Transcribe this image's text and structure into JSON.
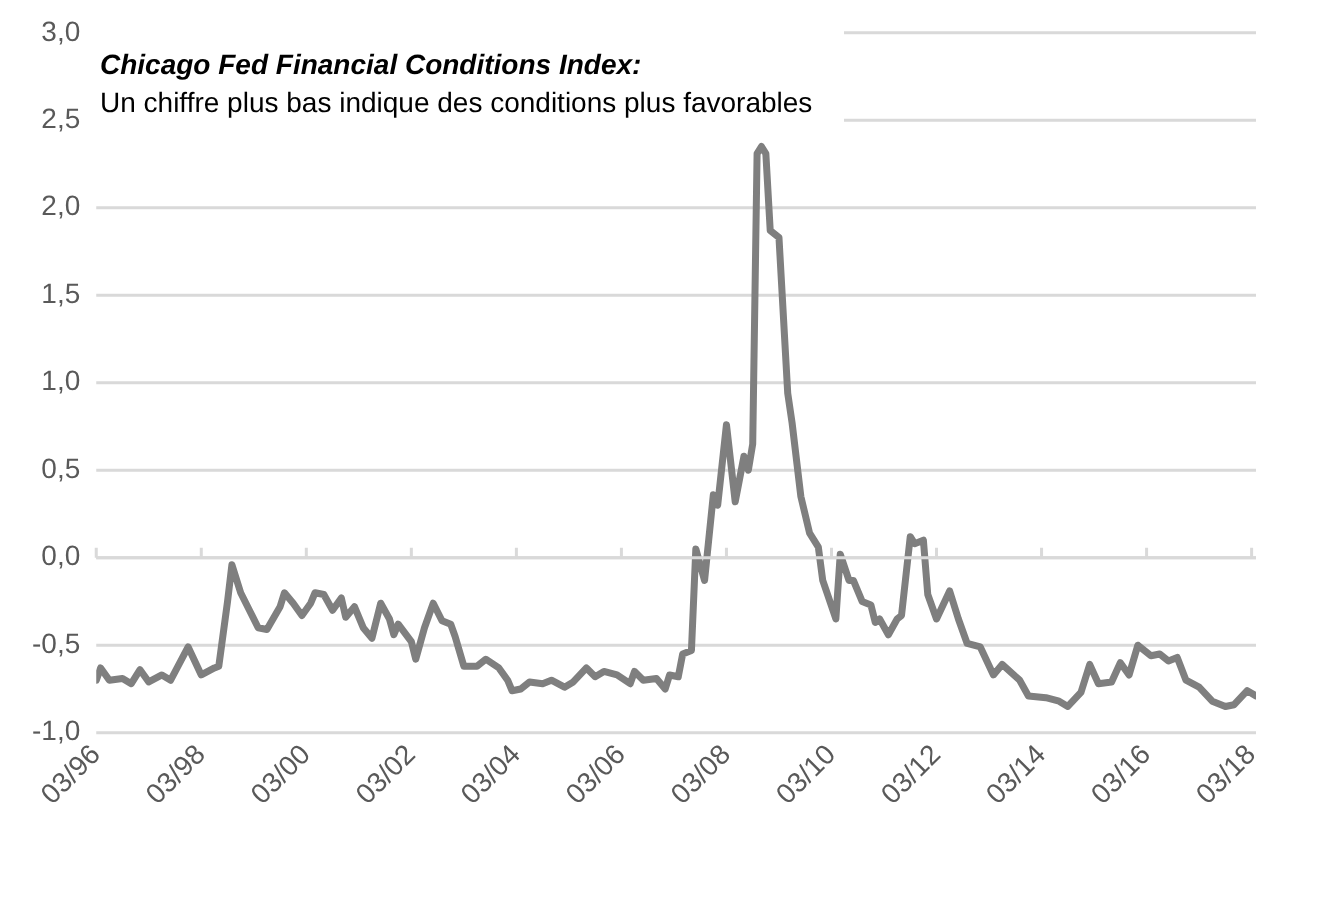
{
  "chart_data": {
    "type": "line",
    "title": "Chicago Fed Financial Conditions Index:",
    "subtitle": "Un chiffre plus bas indique des conditions plus favorables",
    "x": [
      "1996-03",
      "1996-04",
      "1996-06",
      "1996-09",
      "1996-11",
      "1997-01",
      "1997-03",
      "1997-06",
      "1997-08",
      "1997-12",
      "1998-03",
      "1998-06",
      "1998-07",
      "1998-09",
      "1998-10",
      "1998-12",
      "1999-02",
      "1999-04",
      "1999-06",
      "1999-09",
      "1999-10",
      "1999-12",
      "2000-02",
      "2000-04",
      "2000-05",
      "2000-07",
      "2000-09",
      "2000-11",
      "2000-12",
      "2001-02",
      "2001-04",
      "2001-06",
      "2001-08",
      "2001-10",
      "2001-11",
      "2001-12",
      "2002-03",
      "2002-04",
      "2002-06",
      "2002-08",
      "2002-10",
      "2002-12",
      "2003-01",
      "2003-03",
      "2003-06",
      "2003-08",
      "2003-11",
      "2004-01",
      "2004-02",
      "2004-04",
      "2004-06",
      "2004-09",
      "2004-11",
      "2005-02",
      "2005-04",
      "2005-07",
      "2005-09",
      "2005-11",
      "2006-02",
      "2006-05",
      "2006-06",
      "2006-08",
      "2006-11",
      "2007-01",
      "2007-02",
      "2007-04",
      "2007-05",
      "2007-07",
      "2007-08",
      "2007-10",
      "2007-12",
      "2008-01",
      "2008-03",
      "2008-05",
      "2008-07",
      "2008-08",
      "2008-09",
      "2008-10",
      "2008-11",
      "2008-12",
      "2009-01",
      "2009-03",
      "2009-05",
      "2009-06",
      "2009-08",
      "2009-10",
      "2009-12",
      "2010-01",
      "2010-04",
      "2010-05",
      "2010-07",
      "2010-08",
      "2010-10",
      "2010-12",
      "2011-01",
      "2011-02",
      "2011-04",
      "2011-06",
      "2011-07",
      "2011-09",
      "2011-10",
      "2011-12",
      "2012-01",
      "2012-03",
      "2012-06",
      "2012-08",
      "2012-10",
      "2013-01",
      "2013-04",
      "2013-06",
      "2013-10",
      "2013-12",
      "2014-04",
      "2014-07",
      "2014-09",
      "2014-12",
      "2015-02",
      "2015-04",
      "2015-07",
      "2015-09",
      "2015-11",
      "2016-01",
      "2016-04",
      "2016-06",
      "2016-08",
      "2016-10",
      "2016-12",
      "2017-03",
      "2017-06",
      "2017-09",
      "2017-11",
      "2018-02",
      "2018-04"
    ],
    "series": [
      {
        "color": "#7f7f7f",
        "values": [
          -0.7,
          -0.63,
          -0.7,
          -0.69,
          -0.72,
          -0.64,
          -0.71,
          -0.67,
          -0.7,
          -0.51,
          -0.67,
          -0.63,
          -0.62,
          -0.25,
          -0.04,
          -0.2,
          -0.3,
          -0.4,
          -0.41,
          -0.28,
          -0.2,
          -0.26,
          -0.33,
          -0.26,
          -0.2,
          -0.21,
          -0.3,
          -0.23,
          -0.34,
          -0.28,
          -0.4,
          -0.46,
          -0.26,
          -0.35,
          -0.44,
          -0.38,
          -0.48,
          -0.58,
          -0.4,
          -0.26,
          -0.36,
          -0.38,
          -0.45,
          -0.62,
          -0.62,
          -0.58,
          -0.63,
          -0.7,
          -0.76,
          -0.75,
          -0.71,
          -0.72,
          -0.7,
          -0.74,
          -0.71,
          -0.63,
          -0.68,
          -0.65,
          -0.67,
          -0.72,
          -0.65,
          -0.7,
          -0.69,
          -0.75,
          -0.67,
          -0.68,
          -0.55,
          -0.53,
          0.05,
          -0.13,
          0.36,
          0.3,
          0.76,
          0.32,
          0.58,
          0.5,
          0.65,
          2.31,
          2.35,
          2.31,
          1.87,
          1.83,
          0.94,
          0.77,
          0.35,
          0.14,
          0.06,
          -0.13,
          -0.35,
          0.02,
          -0.13,
          -0.13,
          -0.25,
          -0.27,
          -0.37,
          -0.35,
          -0.44,
          -0.35,
          -0.33,
          0.12,
          0.08,
          0.1,
          -0.21,
          -0.35,
          -0.19,
          -0.35,
          -0.49,
          -0.51,
          -0.67,
          -0.61,
          -0.7,
          -0.79,
          -0.8,
          -0.82,
          -0.85,
          -0.77,
          -0.61,
          -0.72,
          -0.71,
          -0.6,
          -0.67,
          -0.5,
          -0.56,
          -0.55,
          -0.59,
          -0.57,
          -0.7,
          -0.74,
          -0.82,
          -0.85,
          -0.84,
          -0.76,
          -0.79
        ]
      }
    ],
    "xlim": [
      "1996-03",
      "2018-04"
    ],
    "xticks": [
      {
        "value": "1996-03",
        "label": "03/96"
      },
      {
        "value": "1998-03",
        "label": "03/98"
      },
      {
        "value": "2000-03",
        "label": "03/00"
      },
      {
        "value": "2002-03",
        "label": "03/02"
      },
      {
        "value": "2004-03",
        "label": "03/04"
      },
      {
        "value": "2006-03",
        "label": "03/06"
      },
      {
        "value": "2008-03",
        "label": "03/08"
      },
      {
        "value": "2010-03",
        "label": "03/10"
      },
      {
        "value": "2012-03",
        "label": "03/12"
      },
      {
        "value": "2014-03",
        "label": "03/14"
      },
      {
        "value": "2016-03",
        "label": "03/16"
      },
      {
        "value": "2018-03",
        "label": "03/18"
      }
    ],
    "ylim": [
      -1,
      3
    ],
    "yticks": [
      {
        "value": -1,
        "label": "-1,0"
      },
      {
        "value": -0.5,
        "label": "-0,5"
      },
      {
        "value": 0,
        "label": "0,0"
      },
      {
        "value": 0.5,
        "label": "0,5"
      },
      {
        "value": 1,
        "label": "1,0"
      },
      {
        "value": 1.5,
        "label": "1,5"
      },
      {
        "value": 2,
        "label": "2,0"
      },
      {
        "value": 2.5,
        "label": "2,5"
      },
      {
        "value": 3,
        "label": "3,0"
      }
    ],
    "grid": "y",
    "legend": false,
    "marker": "none",
    "line_style": "solid"
  }
}
